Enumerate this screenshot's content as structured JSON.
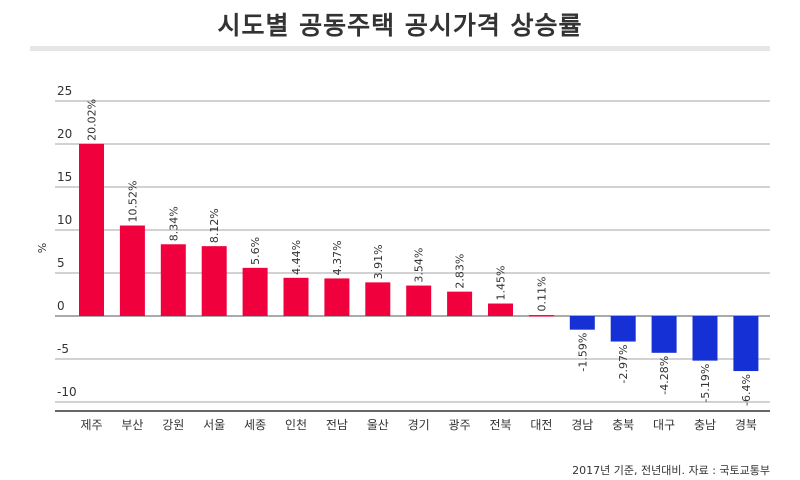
{
  "chart_data": {
    "type": "bar",
    "title": "시도별 공동주택 공시가격 상승률",
    "ylabel": "%",
    "xlabel": "",
    "ylim": [
      -11,
      26
    ],
    "yticks": [
      25,
      20,
      15,
      10,
      5,
      0,
      -5,
      -10
    ],
    "grid": true,
    "categories": [
      "제주",
      "부산",
      "강원",
      "서울",
      "세종",
      "인천",
      "전남",
      "울산",
      "경기",
      "광주",
      "전북",
      "대전",
      "경남",
      "충북",
      "대구",
      "충남",
      "경북"
    ],
    "values": [
      20.02,
      10.52,
      8.34,
      8.12,
      5.6,
      4.44,
      4.37,
      3.91,
      3.54,
      2.83,
      1.45,
      0.11,
      -1.59,
      -2.97,
      -4.28,
      -5.19,
      -6.4
    ],
    "labels": [
      "20.02%",
      "10.52%",
      "8.34%",
      "8.12%",
      "5.6%",
      "4.44%",
      "4.37%",
      "3.91%",
      "3.54%",
      "2.83%",
      "1.45%",
      "0.11%",
      "-1.59%",
      "-2.97%",
      "-4.28%",
      "-5.19%",
      "-6.4%"
    ],
    "colors": {
      "positive": "#f0003c",
      "negative": "#1530d4",
      "grid": "#888888",
      "text": "#333333"
    }
  },
  "source": "2017년 기준, 전년대비. 자료 : 국토교통부"
}
